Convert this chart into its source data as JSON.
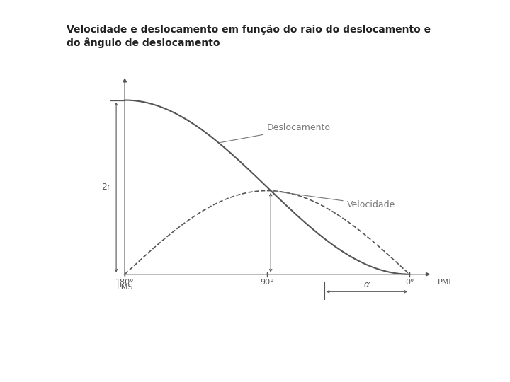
{
  "title_line1": "Velocidade e deslocamento em função do raio do deslocamento e",
  "title_line2": "do ângulo de deslocamento",
  "title_fontsize": 10,
  "title_color": "#222222",
  "bg_color": "#ffffff",
  "curve_color": "#555555",
  "label_color": "#777777",
  "label_deslocamento": "Deslocamento",
  "label_velocidade": "Velocidade",
  "label_2r": "2r",
  "label_180": "180°",
  "label_pms": "PMS",
  "label_90": "90°",
  "label_0": "0°",
  "label_pmi": "PMI",
  "label_alpha": "α",
  "vel_scale": 0.48,
  "figsize": [
    7.2,
    5.4
  ],
  "dpi": 100
}
